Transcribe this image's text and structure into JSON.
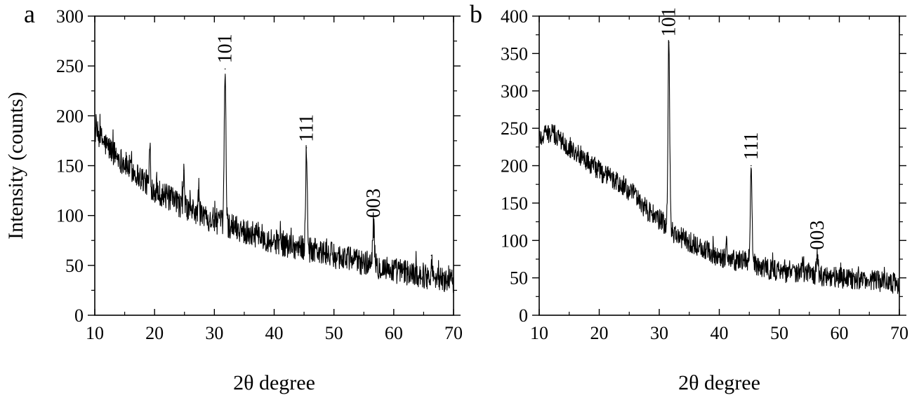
{
  "chart_data": [
    {
      "panel_label": "a",
      "type": "line",
      "xlabel": "2θ degree",
      "ylabel": "Intensity (counts)",
      "xlim": [
        10,
        70
      ],
      "ylim": [
        0,
        300
      ],
      "xticks": [
        10,
        20,
        30,
        40,
        50,
        60,
        70
      ],
      "yticks": [
        0,
        50,
        100,
        150,
        200,
        250,
        300
      ],
      "grid": false,
      "baseline": [
        [
          10,
          185
        ],
        [
          12,
          170
        ],
        [
          15,
          152
        ],
        [
          20,
          126
        ],
        [
          25,
          108
        ],
        [
          30,
          95
        ],
        [
          35,
          85
        ],
        [
          40,
          74
        ],
        [
          45,
          67
        ],
        [
          50,
          60
        ],
        [
          55,
          53
        ],
        [
          60,
          45
        ],
        [
          65,
          40
        ],
        [
          70,
          33
        ]
      ],
      "noise_amplitude": 13,
      "peaks": [
        {
          "x": 31.8,
          "y": 247,
          "label": "101"
        },
        {
          "x": 45.4,
          "y": 168,
          "label": "111"
        },
        {
          "x": 56.6,
          "y": 92,
          "label": "003"
        },
        {
          "x": 19.2,
          "y": 166,
          "label": ""
        },
        {
          "x": 24.9,
          "y": 145,
          "label": ""
        },
        {
          "x": 27.4,
          "y": 128,
          "label": ""
        },
        {
          "x": 66.3,
          "y": 60,
          "label": ""
        }
      ]
    },
    {
      "panel_label": "b",
      "type": "line",
      "xlabel": "2θ degree",
      "ylabel": "",
      "xlim": [
        10,
        70
      ],
      "ylim": [
        0,
        400
      ],
      "xticks": [
        10,
        20,
        30,
        40,
        50,
        60,
        70
      ],
      "yticks": [
        0,
        50,
        100,
        150,
        200,
        250,
        300,
        350,
        400
      ],
      "grid": false,
      "baseline": [
        [
          10,
          238
        ],
        [
          12,
          244
        ],
        [
          14,
          232
        ],
        [
          17,
          213
        ],
        [
          20,
          193
        ],
        [
          23,
          177
        ],
        [
          26,
          160
        ],
        [
          28,
          140
        ],
        [
          30,
          128
        ],
        [
          32,
          112
        ],
        [
          35,
          98
        ],
        [
          38,
          86
        ],
        [
          40,
          77
        ],
        [
          43,
          73
        ],
        [
          45,
          72
        ],
        [
          47,
          65
        ],
        [
          50,
          58
        ],
        [
          55,
          55
        ],
        [
          60,
          50
        ],
        [
          65,
          47
        ],
        [
          70,
          42
        ]
      ],
      "noise_amplitude": 14,
      "peaks": [
        {
          "x": 31.6,
          "y": 365,
          "label": "101"
        },
        {
          "x": 45.3,
          "y": 200,
          "label": "111"
        },
        {
          "x": 56.3,
          "y": 80,
          "label": "003"
        },
        {
          "x": 41.2,
          "y": 95,
          "label": ""
        },
        {
          "x": 53.9,
          "y": 70,
          "label": ""
        }
      ]
    }
  ]
}
